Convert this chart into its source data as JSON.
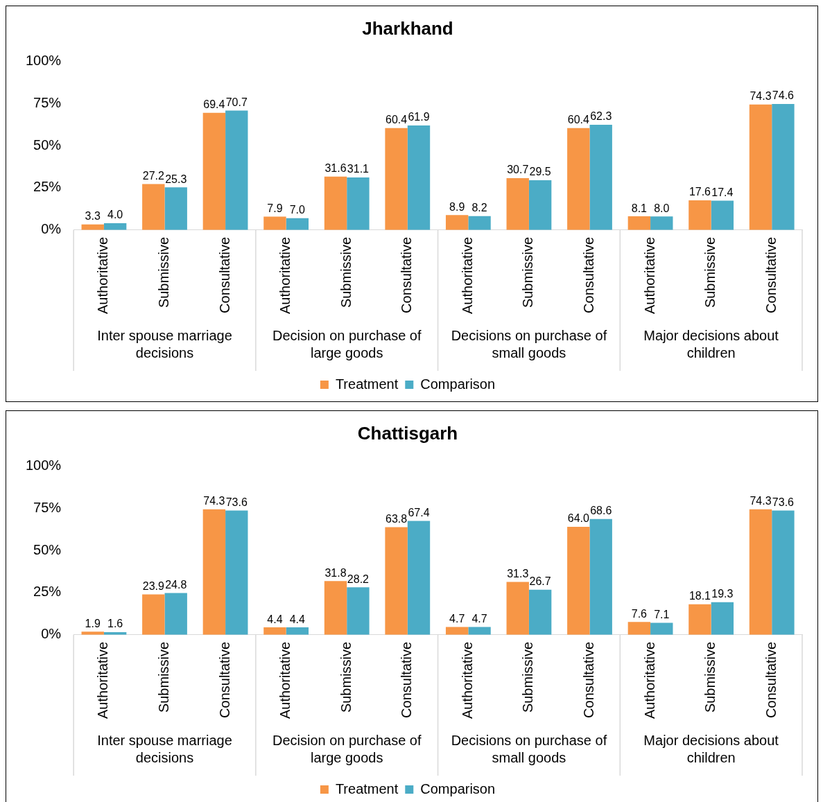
{
  "chart_data": [
    {
      "type": "bar",
      "title": "Jharkhand",
      "categories": [
        "Authoritative",
        "Submissive",
        "Consultative",
        "Authoritative",
        "Submissive",
        "Consultative",
        "Authoritative",
        "Submissive",
        "Consultative",
        "Authoritative",
        "Submissive",
        "Consultative"
      ],
      "annotations": [
        "Inter spouse marriage decisions",
        "Decision on purchase of large goods",
        "Decisions on purchase of small goods",
        "Major decisions about children"
      ],
      "series": [
        {
          "name": "Treatment",
          "color": "#f79646",
          "values": [
            3.3,
            27.2,
            69.4,
            7.9,
            31.6,
            60.4,
            8.9,
            30.7,
            60.4,
            8.1,
            17.6,
            74.3
          ],
          "value_labels": [
            "3.3",
            "27.2",
            "69.4",
            "7.9",
            "31.6",
            "60.4",
            "8.9",
            "30.7",
            "60.4",
            "8.1",
            "17.6",
            "74.3"
          ]
        },
        {
          "name": "Comparison",
          "color": "#4bacc6",
          "values": [
            4.0,
            25.3,
            70.7,
            7.0,
            31.1,
            61.9,
            8.2,
            29.5,
            62.3,
            8.0,
            17.4,
            74.6
          ],
          "value_labels": [
            "4.0",
            "25.3",
            "70.7",
            "7.0",
            "31.1",
            "61.9",
            "8.2",
            "29.5",
            "62.3",
            "8.0",
            "17.4",
            "74.6"
          ]
        }
      ],
      "ylim": [
        0,
        100
      ],
      "yticks": [
        {
          "value": 0,
          "label": "0%"
        },
        {
          "value": 25,
          "label": "25%"
        },
        {
          "value": 50,
          "label": "50%"
        },
        {
          "value": 75,
          "label": "75%"
        },
        {
          "value": 100,
          "label": "100%"
        }
      ],
      "grid": false,
      "legend": "bottom"
    },
    {
      "type": "bar",
      "title": "Chattisgarh",
      "categories": [
        "Authoritative",
        "Submissive",
        "Consultative",
        "Authoritative",
        "Submissive",
        "Consultative",
        "Authoritative",
        "Submissive",
        "Consultative",
        "Authoritative",
        "Submissive",
        "Consultative"
      ],
      "annotations": [
        "Inter spouse marriage decisions",
        "Decision on purchase of large goods",
        "Decisions on purchase of small goods",
        "Major decisions about children"
      ],
      "series": [
        {
          "name": "Treatment",
          "color": "#f79646",
          "values": [
            1.9,
            23.9,
            74.3,
            4.4,
            31.8,
            63.8,
            4.7,
            31.3,
            64.0,
            7.6,
            18.1,
            74.3
          ],
          "value_labels": [
            "1.9",
            "23.9",
            "74.3",
            "4.4",
            "31.8",
            "63.8",
            "4.7",
            "31.3",
            "64.0",
            "7.6",
            "18.1",
            "74.3"
          ]
        },
        {
          "name": "Comparison",
          "color": "#4bacc6",
          "values": [
            1.6,
            24.8,
            73.6,
            4.4,
            28.2,
            67.4,
            4.7,
            26.7,
            68.6,
            7.1,
            19.3,
            73.6
          ],
          "value_labels": [
            "1.6",
            "24.8",
            "73.6",
            "4.4",
            "28.2",
            "67.4",
            "4.7",
            "26.7",
            "68.6",
            "7.1",
            "19.3",
            "73.6"
          ]
        }
      ],
      "ylim": [
        0,
        100
      ],
      "yticks": [
        {
          "value": 0,
          "label": "0%"
        },
        {
          "value": 25,
          "label": "25%"
        },
        {
          "value": 50,
          "label": "50%"
        },
        {
          "value": 75,
          "label": "75%"
        },
        {
          "value": 100,
          "label": "100%"
        }
      ],
      "grid": false,
      "legend": "bottom"
    }
  ]
}
